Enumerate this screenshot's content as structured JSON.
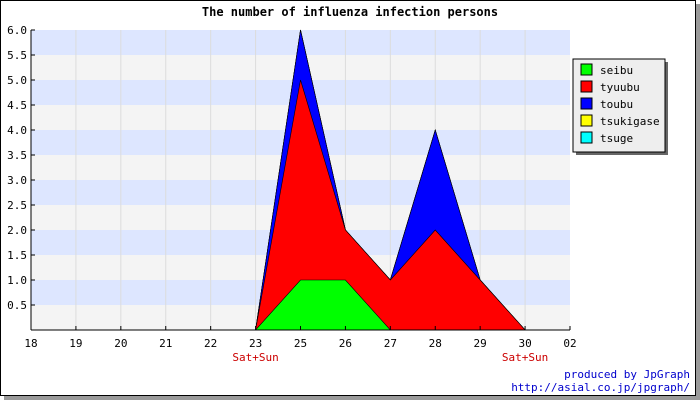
{
  "chart_data": {
    "type": "area",
    "title": "The number of influenza infection persons",
    "x": [
      "18",
      "19",
      "20",
      "21",
      "22",
      "23",
      "25",
      "26",
      "27",
      "28",
      "29",
      "30",
      "02"
    ],
    "x_sublabels": {
      "23": "Sat+Sun",
      "30": "Sat+Sun"
    },
    "ylim": [
      0,
      6
    ],
    "yticks": [
      "6.0",
      "5.5",
      "5.0",
      "4.5",
      "4.0",
      "3.5",
      "3.0",
      "2.5",
      "2.0",
      "1.5",
      "1.0",
      "0.5"
    ],
    "stacked": true,
    "series": [
      {
        "name": "seibu",
        "color": "#00ff00",
        "values": [
          0,
          0,
          0,
          0,
          0,
          0,
          1,
          1,
          0,
          0,
          0,
          0,
          0
        ]
      },
      {
        "name": "tyuubu",
        "color": "#ff0000",
        "values": [
          0,
          0,
          0,
          0,
          0,
          0,
          4,
          1,
          1,
          2,
          1,
          0,
          0
        ]
      },
      {
        "name": "toubu",
        "color": "#0000ff",
        "values": [
          0,
          0,
          0,
          0,
          0,
          0,
          1,
          0,
          0,
          2,
          0,
          0,
          0
        ]
      },
      {
        "name": "tsukigase",
        "color": "#ffff00",
        "values": [
          0,
          0,
          0,
          0,
          0,
          0,
          0,
          0,
          0,
          0,
          0,
          0,
          0
        ]
      },
      {
        "name": "tsuge",
        "color": "#00ffff",
        "values": [
          0,
          0,
          0,
          0,
          0,
          0,
          0,
          0,
          0,
          0,
          0,
          0,
          0
        ]
      }
    ],
    "legend_position": "right",
    "grid": true,
    "band_colors": [
      "#dde6ff",
      "#f4f4f4"
    ],
    "subtitle_color": "#cc0000"
  },
  "footer": {
    "produced_by": "produced by JpGraph",
    "url": "http://asial.co.jp/jpgraph/",
    "color": "#0000cc"
  }
}
